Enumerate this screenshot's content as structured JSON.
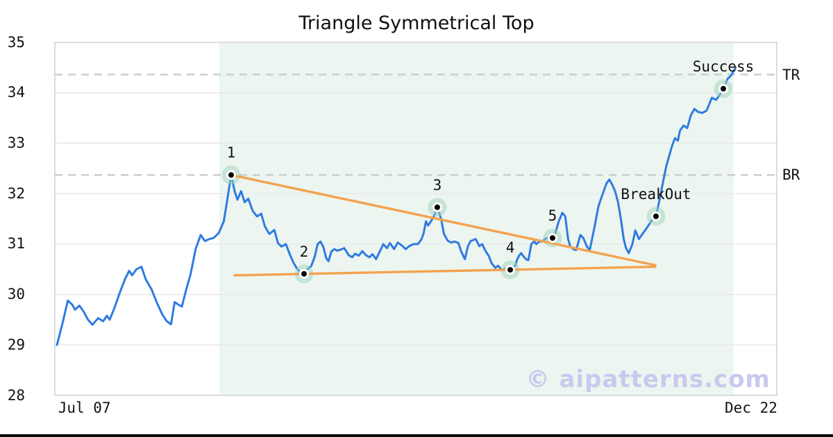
{
  "chart_data": {
    "type": "line",
    "title": "Triangle Symmetrical Top",
    "watermark": "© aipatterns.com",
    "xlabel": "",
    "ylabel": "",
    "ylim": [
      28,
      35
    ],
    "yticks": [
      35,
      34,
      33,
      32,
      31,
      30,
      29,
      28
    ],
    "xticks": [
      {
        "label": "Jul 07",
        "pos": 0.041
      },
      {
        "label": "Dec 22",
        "pos": 0.9644
      }
    ],
    "grid": "horizontal",
    "legend": "none",
    "colors": {
      "price_line": "#2f7be0",
      "trend_line": "#f4a24e",
      "pattern_zone": "#ecf5f0",
      "marker_halo": "#9fd4bb",
      "gridline": "#e9e9e9",
      "frame": "#d0d0d0",
      "dashed_level": "#cdcdcd",
      "watermark": "#c9c9ee",
      "text": "#111111",
      "bottom_bar": "#0a0a0a"
    },
    "pattern_zone": {
      "x0": 0.228,
      "x1": 0.94
    },
    "hlines": [
      {
        "label": "TR",
        "price": 34.36
      },
      {
        "label": "BR",
        "price": 32.37
      }
    ],
    "trendlines": [
      {
        "name": "upper",
        "from": [
          0.2442,
          32.37
        ],
        "to": [
          0.8317,
          30.58
        ]
      },
      {
        "name": "lower",
        "from": [
          0.249,
          30.38
        ],
        "to": [
          0.8317,
          30.55
        ]
      }
    ],
    "points": [
      {
        "label": "1",
        "x": 0.2442,
        "price": 32.37
      },
      {
        "label": "2",
        "x": 0.3452,
        "price": 30.41
      },
      {
        "label": "3",
        "x": 0.5298,
        "price": 31.73
      },
      {
        "label": "4",
        "x": 0.6308,
        "price": 30.49
      },
      {
        "label": "5",
        "x": 0.6894,
        "price": 31.12
      },
      {
        "label": "BreakOut",
        "x": 0.8327,
        "price": 31.55
      },
      {
        "label": "Success",
        "x": 0.926,
        "price": 34.08
      }
    ],
    "price_series": [
      [
        0.003,
        29.0
      ],
      [
        0.011,
        29.45
      ],
      [
        0.018,
        29.88
      ],
      [
        0.024,
        29.8
      ],
      [
        0.028,
        29.7
      ],
      [
        0.034,
        29.78
      ],
      [
        0.04,
        29.66
      ],
      [
        0.046,
        29.5
      ],
      [
        0.052,
        29.4
      ],
      [
        0.06,
        29.53
      ],
      [
        0.067,
        29.47
      ],
      [
        0.072,
        29.58
      ],
      [
        0.076,
        29.5
      ],
      [
        0.083,
        29.75
      ],
      [
        0.089,
        30.0
      ],
      [
        0.097,
        30.3
      ],
      [
        0.103,
        30.47
      ],
      [
        0.107,
        30.38
      ],
      [
        0.113,
        30.5
      ],
      [
        0.12,
        30.55
      ],
      [
        0.126,
        30.3
      ],
      [
        0.134,
        30.1
      ],
      [
        0.141,
        29.85
      ],
      [
        0.149,
        29.6
      ],
      [
        0.155,
        29.47
      ],
      [
        0.161,
        29.41
      ],
      [
        0.166,
        29.85
      ],
      [
        0.171,
        29.8
      ],
      [
        0.176,
        29.76
      ],
      [
        0.182,
        30.1
      ],
      [
        0.188,
        30.4
      ],
      [
        0.195,
        30.9
      ],
      [
        0.202,
        31.18
      ],
      [
        0.208,
        31.06
      ],
      [
        0.214,
        31.1
      ],
      [
        0.22,
        31.12
      ],
      [
        0.227,
        31.22
      ],
      [
        0.234,
        31.45
      ],
      [
        0.238,
        31.8
      ],
      [
        0.2442,
        32.37
      ],
      [
        0.249,
        32.05
      ],
      [
        0.253,
        31.88
      ],
      [
        0.258,
        32.05
      ],
      [
        0.263,
        31.83
      ],
      [
        0.268,
        31.9
      ],
      [
        0.274,
        31.66
      ],
      [
        0.28,
        31.55
      ],
      [
        0.286,
        31.6
      ],
      [
        0.291,
        31.35
      ],
      [
        0.297,
        31.2
      ],
      [
        0.304,
        31.28
      ],
      [
        0.309,
        31.02
      ],
      [
        0.314,
        30.95
      ],
      [
        0.32,
        31.0
      ],
      [
        0.326,
        30.78
      ],
      [
        0.331,
        30.62
      ],
      [
        0.336,
        30.5
      ],
      [
        0.34,
        30.44
      ],
      [
        0.3452,
        30.41
      ],
      [
        0.351,
        30.52
      ],
      [
        0.355,
        30.56
      ],
      [
        0.36,
        30.75
      ],
      [
        0.364,
        31.0
      ],
      [
        0.368,
        31.05
      ],
      [
        0.372,
        30.94
      ],
      [
        0.376,
        30.72
      ],
      [
        0.379,
        30.66
      ],
      [
        0.383,
        30.85
      ],
      [
        0.387,
        30.9
      ],
      [
        0.391,
        30.87
      ],
      [
        0.396,
        30.89
      ],
      [
        0.401,
        30.92
      ],
      [
        0.407,
        30.78
      ],
      [
        0.412,
        30.74
      ],
      [
        0.416,
        30.81
      ],
      [
        0.421,
        30.77
      ],
      [
        0.426,
        30.86
      ],
      [
        0.431,
        30.78
      ],
      [
        0.436,
        30.74
      ],
      [
        0.44,
        30.8
      ],
      [
        0.445,
        30.7
      ],
      [
        0.45,
        30.85
      ],
      [
        0.455,
        31.0
      ],
      [
        0.46,
        30.92
      ],
      [
        0.464,
        31.02
      ],
      [
        0.47,
        30.9
      ],
      [
        0.475,
        31.03
      ],
      [
        0.48,
        30.98
      ],
      [
        0.486,
        30.9
      ],
      [
        0.491,
        30.96
      ],
      [
        0.497,
        31.0
      ],
      [
        0.503,
        31.0
      ],
      [
        0.508,
        31.1
      ],
      [
        0.511,
        31.22
      ],
      [
        0.514,
        31.45
      ],
      [
        0.517,
        31.37
      ],
      [
        0.521,
        31.45
      ],
      [
        0.525,
        31.55
      ],
      [
        0.5298,
        31.73
      ],
      [
        0.535,
        31.5
      ],
      [
        0.539,
        31.2
      ],
      [
        0.544,
        31.07
      ],
      [
        0.549,
        31.03
      ],
      [
        0.554,
        31.05
      ],
      [
        0.559,
        31.02
      ],
      [
        0.563,
        30.85
      ],
      [
        0.568,
        30.7
      ],
      [
        0.572,
        30.95
      ],
      [
        0.576,
        31.06
      ],
      [
        0.583,
        31.1
      ],
      [
        0.588,
        30.96
      ],
      [
        0.592,
        31.0
      ],
      [
        0.597,
        30.85
      ],
      [
        0.601,
        30.77
      ],
      [
        0.605,
        30.62
      ],
      [
        0.61,
        30.53
      ],
      [
        0.614,
        30.57
      ],
      [
        0.619,
        30.48
      ],
      [
        0.624,
        30.52
      ],
      [
        0.627,
        30.46
      ],
      [
        0.6308,
        30.49
      ],
      [
        0.635,
        30.55
      ],
      [
        0.638,
        30.57
      ],
      [
        0.64,
        30.68
      ],
      [
        0.643,
        30.77
      ],
      [
        0.646,
        30.82
      ],
      [
        0.65,
        30.74
      ],
      [
        0.653,
        30.7
      ],
      [
        0.656,
        30.68
      ],
      [
        0.66,
        31.0
      ],
      [
        0.664,
        31.05
      ],
      [
        0.667,
        31.0
      ],
      [
        0.671,
        31.05
      ],
      [
        0.675,
        31.05
      ],
      [
        0.679,
        31.1
      ],
      [
        0.684,
        31.13
      ],
      [
        0.6894,
        31.12
      ],
      [
        0.693,
        31.2
      ],
      [
        0.698,
        31.45
      ],
      [
        0.703,
        31.62
      ],
      [
        0.707,
        31.55
      ],
      [
        0.711,
        31.1
      ],
      [
        0.714,
        30.95
      ],
      [
        0.718,
        30.9
      ],
      [
        0.722,
        30.88
      ],
      [
        0.728,
        31.18
      ],
      [
        0.732,
        31.12
      ],
      [
        0.737,
        30.95
      ],
      [
        0.741,
        30.88
      ],
      [
        0.747,
        31.3
      ],
      [
        0.753,
        31.75
      ],
      [
        0.759,
        32.0
      ],
      [
        0.764,
        32.2
      ],
      [
        0.768,
        32.28
      ],
      [
        0.772,
        32.18
      ],
      [
        0.776,
        32.05
      ],
      [
        0.78,
        31.84
      ],
      [
        0.784,
        31.5
      ],
      [
        0.788,
        31.1
      ],
      [
        0.791,
        30.93
      ],
      [
        0.795,
        30.82
      ],
      [
        0.8,
        31.0
      ],
      [
        0.804,
        31.27
      ],
      [
        0.809,
        31.1
      ],
      [
        0.814,
        31.2
      ],
      [
        0.82,
        31.32
      ],
      [
        0.826,
        31.45
      ],
      [
        0.8327,
        31.55
      ],
      [
        0.838,
        31.9
      ],
      [
        0.842,
        32.2
      ],
      [
        0.847,
        32.55
      ],
      [
        0.852,
        32.8
      ],
      [
        0.855,
        32.95
      ],
      [
        0.859,
        33.1
      ],
      [
        0.863,
        33.05
      ],
      [
        0.866,
        33.25
      ],
      [
        0.871,
        33.35
      ],
      [
        0.876,
        33.3
      ],
      [
        0.881,
        33.55
      ],
      [
        0.886,
        33.68
      ],
      [
        0.891,
        33.62
      ],
      [
        0.897,
        33.6
      ],
      [
        0.903,
        33.65
      ],
      [
        0.91,
        33.9
      ],
      [
        0.916,
        33.86
      ],
      [
        0.922,
        33.98
      ],
      [
        0.926,
        34.08
      ],
      [
        0.932,
        34.28
      ],
      [
        0.936,
        34.33
      ],
      [
        0.94,
        34.42
      ],
      [
        0.943,
        34.5
      ]
    ]
  }
}
